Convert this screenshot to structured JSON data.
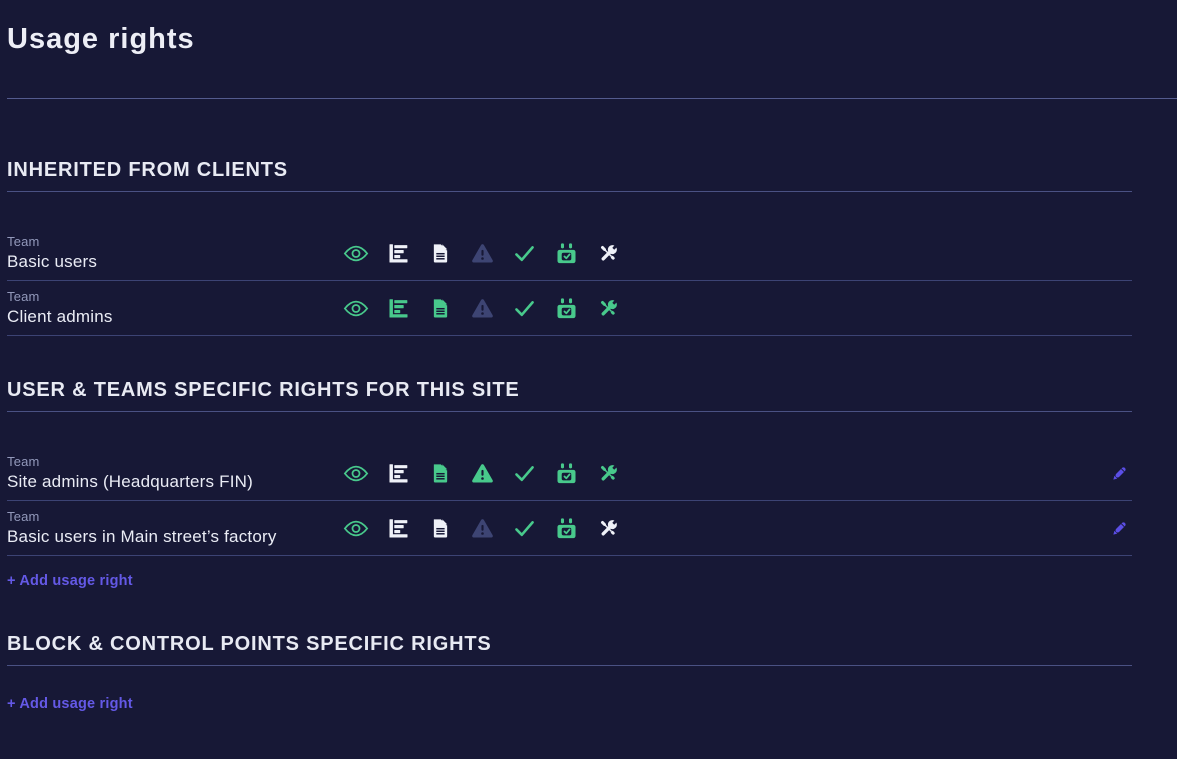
{
  "page_title": "Usage rights",
  "labels": {
    "team": "Team",
    "add_usage_right": "+ Add usage right"
  },
  "colors": {
    "background": "#171836",
    "icon_green": "#48c98c",
    "icon_white": "#eff1f8",
    "icon_muted": "#3d4473",
    "accent_purple": "#5b4ee6",
    "divider": "#4a5183"
  },
  "sections": [
    {
      "title": "INHERITED FROM CLIENTS",
      "has_add_link": false,
      "rows": [
        {
          "type": "Team",
          "name": "Basic users",
          "editable": false,
          "rights": [
            {
              "icon": "view-icon",
              "state": "green"
            },
            {
              "icon": "stats-icon",
              "state": "white"
            },
            {
              "icon": "document-icon",
              "state": "white"
            },
            {
              "icon": "alarm-icon",
              "state": "muted"
            },
            {
              "icon": "validate-check-icon",
              "state": "green"
            },
            {
              "icon": "planning-calendar-icon",
              "state": "green"
            },
            {
              "icon": "maintenance-tools-icon",
              "state": "white"
            }
          ]
        },
        {
          "type": "Team",
          "name": "Client admins",
          "editable": false,
          "rights": [
            {
              "icon": "view-icon",
              "state": "green"
            },
            {
              "icon": "stats-icon",
              "state": "green"
            },
            {
              "icon": "document-icon",
              "state": "green"
            },
            {
              "icon": "alarm-icon",
              "state": "muted"
            },
            {
              "icon": "validate-check-icon",
              "state": "green"
            },
            {
              "icon": "planning-calendar-icon",
              "state": "green"
            },
            {
              "icon": "maintenance-tools-icon",
              "state": "green"
            }
          ]
        }
      ]
    },
    {
      "title": "USER & TEAMS SPECIFIC RIGHTS FOR THIS SITE",
      "has_add_link": true,
      "rows": [
        {
          "type": "Team",
          "name": "Site admins (Headquarters FIN)",
          "editable": true,
          "rights": [
            {
              "icon": "view-icon",
              "state": "green"
            },
            {
              "icon": "stats-icon",
              "state": "white"
            },
            {
              "icon": "document-icon",
              "state": "green"
            },
            {
              "icon": "alarm-icon",
              "state": "green"
            },
            {
              "icon": "validate-check-icon",
              "state": "green"
            },
            {
              "icon": "planning-calendar-icon",
              "state": "green"
            },
            {
              "icon": "maintenance-tools-icon",
              "state": "green"
            }
          ]
        },
        {
          "type": "Team",
          "name": "Basic users in Main street’s factory",
          "editable": true,
          "rights": [
            {
              "icon": "view-icon",
              "state": "green"
            },
            {
              "icon": "stats-icon",
              "state": "white"
            },
            {
              "icon": "document-icon",
              "state": "white"
            },
            {
              "icon": "alarm-icon",
              "state": "muted"
            },
            {
              "icon": "validate-check-icon",
              "state": "green"
            },
            {
              "icon": "planning-calendar-icon",
              "state": "green"
            },
            {
              "icon": "maintenance-tools-icon",
              "state": "white"
            }
          ]
        }
      ]
    },
    {
      "title": "BLOCK & CONTROL POINTS SPECIFIC RIGHTS",
      "has_add_link": true,
      "rows": []
    }
  ]
}
